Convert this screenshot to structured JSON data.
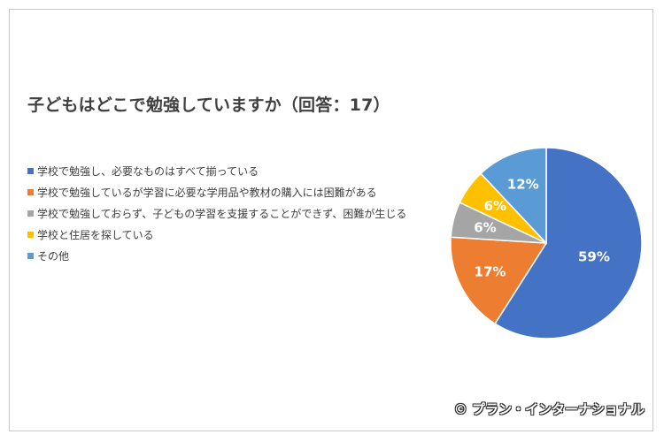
{
  "chart_data": {
    "type": "pie",
    "title": "子どもはどこで勉強していますか（回答：17）",
    "slices": [
      {
        "label": "学校で勉強し、必要なものはすべて揃っている",
        "value": 59,
        "value_label": "59%",
        "color": "#4472C4"
      },
      {
        "label": "学校で勉強しているが学習に必要な学用品や教材の購入には困難がある",
        "value": 17,
        "value_label": "17%",
        "color": "#ED7D31"
      },
      {
        "label": "学校で勉強しておらず、子どもの学習を支援することができず、困難が生じる",
        "value": 6,
        "value_label": "6%",
        "color": "#A5A5A5"
      },
      {
        "label": "学校と住居を探している",
        "value": 6,
        "value_label": "6%",
        "color": "#FFC000"
      },
      {
        "label": "その他",
        "value": 12,
        "value_label": "12%",
        "color": "#5B9BD5"
      }
    ],
    "legend_position": "left"
  },
  "credit": "© プラン・インターナショナル"
}
